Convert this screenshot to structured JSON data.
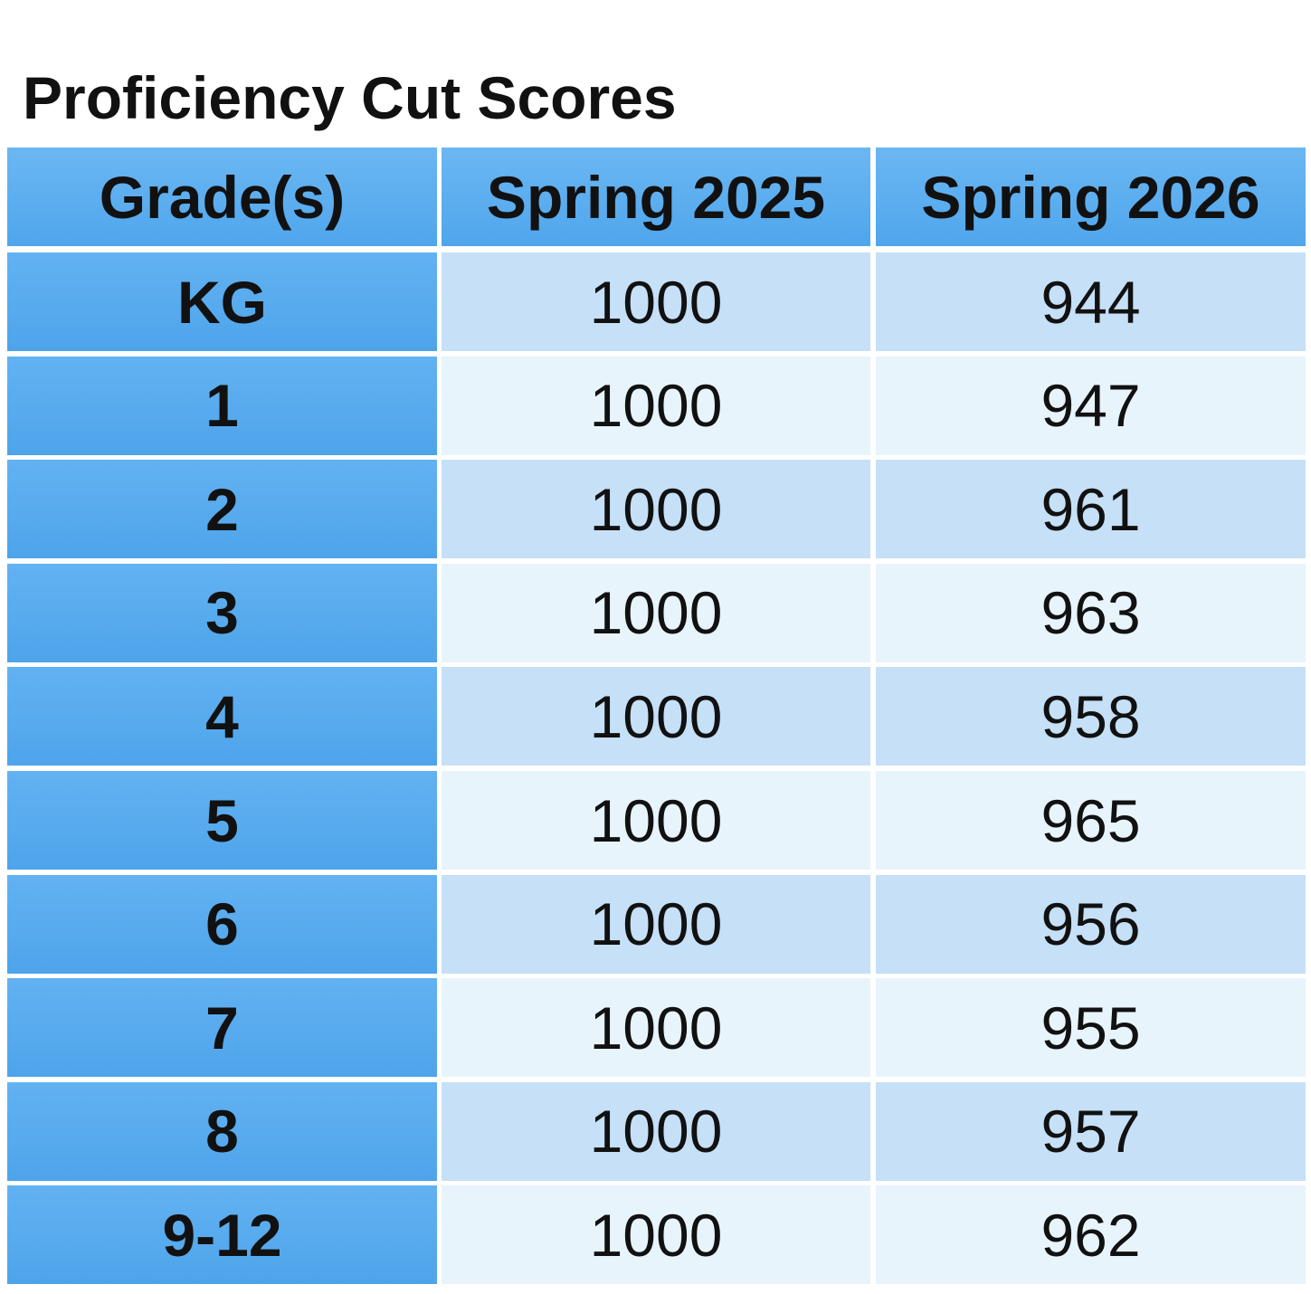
{
  "title": "Proficiency Cut Scores",
  "table": {
    "header": [
      "Grade(s)",
      "Spring 2025",
      "Spring 2026"
    ],
    "rows": [
      [
        "KG",
        1000,
        944
      ],
      [
        "1",
        1000,
        947
      ],
      [
        "2",
        1000,
        961
      ],
      [
        "3",
        1000,
        963
      ],
      [
        "4",
        1000,
        958
      ],
      [
        "5",
        1000,
        965
      ],
      [
        "6",
        1000,
        956
      ],
      [
        "7",
        1000,
        955
      ],
      [
        "8",
        1000,
        957
      ],
      [
        "9-12",
        1000,
        962
      ]
    ]
  }
}
